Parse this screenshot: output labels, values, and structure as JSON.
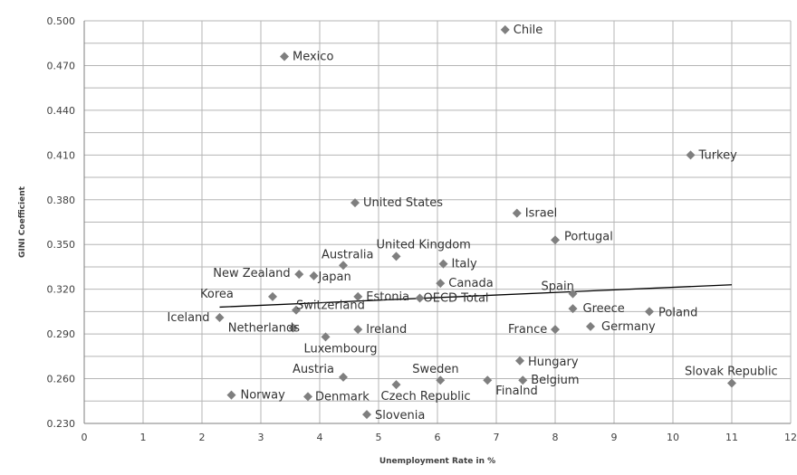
{
  "chart_data": {
    "type": "scatter",
    "xlabel": "Unemployment Rate in %",
    "ylabel": "GINI Coefficient",
    "xlim": [
      0,
      12
    ],
    "ylim": [
      0.23,
      0.5
    ],
    "x_ticks": [
      0,
      1,
      2,
      3,
      4,
      5,
      6,
      7,
      8,
      9,
      10,
      11,
      12
    ],
    "y_ticks": [
      0.23,
      0.26,
      0.29,
      0.32,
      0.35,
      0.38,
      0.41,
      0.44,
      0.47,
      0.5
    ],
    "y_tick_labels": [
      "0.230",
      "0.260",
      "0.290",
      "0.320",
      "0.350",
      "0.380",
      "0.410",
      "0.440",
      "0.470",
      "0.500"
    ],
    "grid": true,
    "marker": "diamond",
    "marker_color": "#7f7f7f",
    "trend_line": {
      "x": [
        2.3,
        11.0
      ],
      "y": [
        0.308,
        0.323
      ]
    },
    "points": [
      {
        "label": "Chile",
        "x": 7.15,
        "y": 0.494
      },
      {
        "label": "Mexico",
        "x": 3.4,
        "y": 0.476
      },
      {
        "label": "Turkey",
        "x": 10.3,
        "y": 0.41
      },
      {
        "label": "United States",
        "x": 4.6,
        "y": 0.378
      },
      {
        "label": "Israel",
        "x": 7.35,
        "y": 0.371
      },
      {
        "label": "Portugal",
        "x": 8.0,
        "y": 0.353
      },
      {
        "label": "United Kingdom",
        "x": 5.3,
        "y": 0.342
      },
      {
        "label": "Australia",
        "x": 4.4,
        "y": 0.336
      },
      {
        "label": "Italy",
        "x": 6.1,
        "y": 0.337
      },
      {
        "label": "New Zealand",
        "x": 3.65,
        "y": 0.33
      },
      {
        "label": "Japan",
        "x": 3.9,
        "y": 0.329
      },
      {
        "label": "Canada",
        "x": 6.05,
        "y": 0.324
      },
      {
        "label": "Spain",
        "x": 8.3,
        "y": 0.317
      },
      {
        "label": "Korea",
        "x": 3.2,
        "y": 0.315
      },
      {
        "label": "Estonia",
        "x": 4.65,
        "y": 0.315
      },
      {
        "label": "OECD Total",
        "x": 5.7,
        "y": 0.314
      },
      {
        "label": "Switzerland",
        "x": 3.6,
        "y": 0.306
      },
      {
        "label": "Greece",
        "x": 8.3,
        "y": 0.307
      },
      {
        "label": "Poland",
        "x": 9.6,
        "y": 0.305
      },
      {
        "label": "Iceland",
        "x": 2.3,
        "y": 0.301
      },
      {
        "label": "Netherlands",
        "x": 3.55,
        "y": 0.294
      },
      {
        "label": "Ireland",
        "x": 4.65,
        "y": 0.293
      },
      {
        "label": "Luxembourg",
        "x": 4.1,
        "y": 0.288
      },
      {
        "label": "France",
        "x": 8.0,
        "y": 0.293
      },
      {
        "label": "Germany",
        "x": 8.6,
        "y": 0.295
      },
      {
        "label": "Hungary",
        "x": 7.4,
        "y": 0.272
      },
      {
        "label": "Austria",
        "x": 4.4,
        "y": 0.261
      },
      {
        "label": "Sweden",
        "x": 6.05,
        "y": 0.259
      },
      {
        "label": "Belgium",
        "x": 7.45,
        "y": 0.259
      },
      {
        "label": "Finalnd",
        "x": 6.85,
        "y": 0.259
      },
      {
        "label": "Czech Republic",
        "x": 5.3,
        "y": 0.256
      },
      {
        "label": "Slovak Republic",
        "x": 11.0,
        "y": 0.257
      },
      {
        "label": "Norway",
        "x": 2.5,
        "y": 0.249
      },
      {
        "label": "Denmark",
        "x": 3.8,
        "y": 0.248
      },
      {
        "label": "Slovenia",
        "x": 4.8,
        "y": 0.236
      }
    ]
  }
}
